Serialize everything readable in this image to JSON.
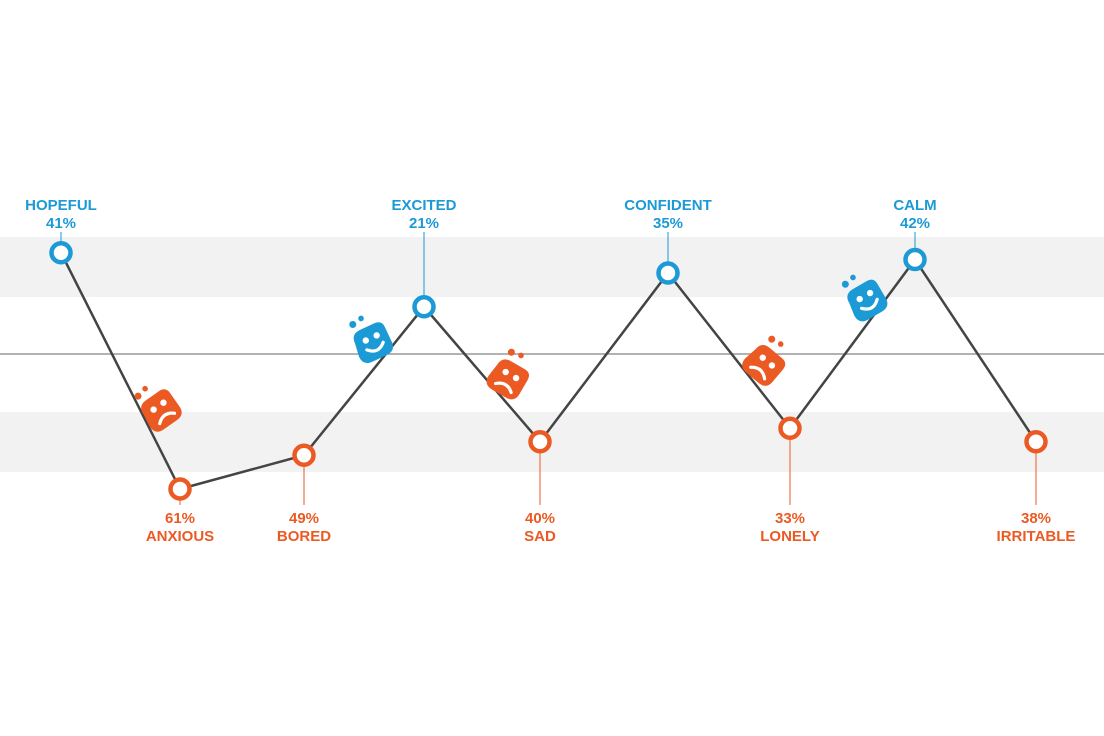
{
  "colors": {
    "positive": "#1b9ad6",
    "negative": "#ec5a24",
    "line": "#444444",
    "band": "#f2f2f2",
    "midline": "#999999"
  },
  "chart_data": {
    "type": "line",
    "title": "",
    "xlabel": "",
    "ylabel": "",
    "points": [
      {
        "label": "HOPEFUL",
        "value": "41%",
        "kind": "positive",
        "level": 0.75
      },
      {
        "label": "ANXIOUS",
        "value": "61%",
        "kind": "negative",
        "level": -1.0
      },
      {
        "label": "BORED",
        "value": "49%",
        "kind": "negative",
        "level": -0.75
      },
      {
        "label": "EXCITED",
        "value": "21%",
        "kind": "positive",
        "level": 0.35
      },
      {
        "label": "SAD",
        "value": "40%",
        "kind": "negative",
        "level": -0.65
      },
      {
        "label": "CONFIDENT",
        "value": "35%",
        "kind": "positive",
        "level": 0.6
      },
      {
        "label": "LONELY",
        "value": "33%",
        "kind": "negative",
        "level": -0.55
      },
      {
        "label": "CALM",
        "value": "42%",
        "kind": "positive",
        "level": 0.7
      },
      {
        "label": "IRRITABLE",
        "value": "38%",
        "kind": "negative",
        "level": -0.65
      }
    ],
    "icons": [
      {
        "kind": "negative",
        "name": "sad-face-icon"
      },
      {
        "kind": "positive",
        "name": "happy-face-icon"
      },
      {
        "kind": "negative",
        "name": "sad-face-icon"
      },
      {
        "kind": "negative",
        "name": "sad-face-icon"
      },
      {
        "kind": "positive",
        "name": "happy-face-icon"
      }
    ]
  }
}
